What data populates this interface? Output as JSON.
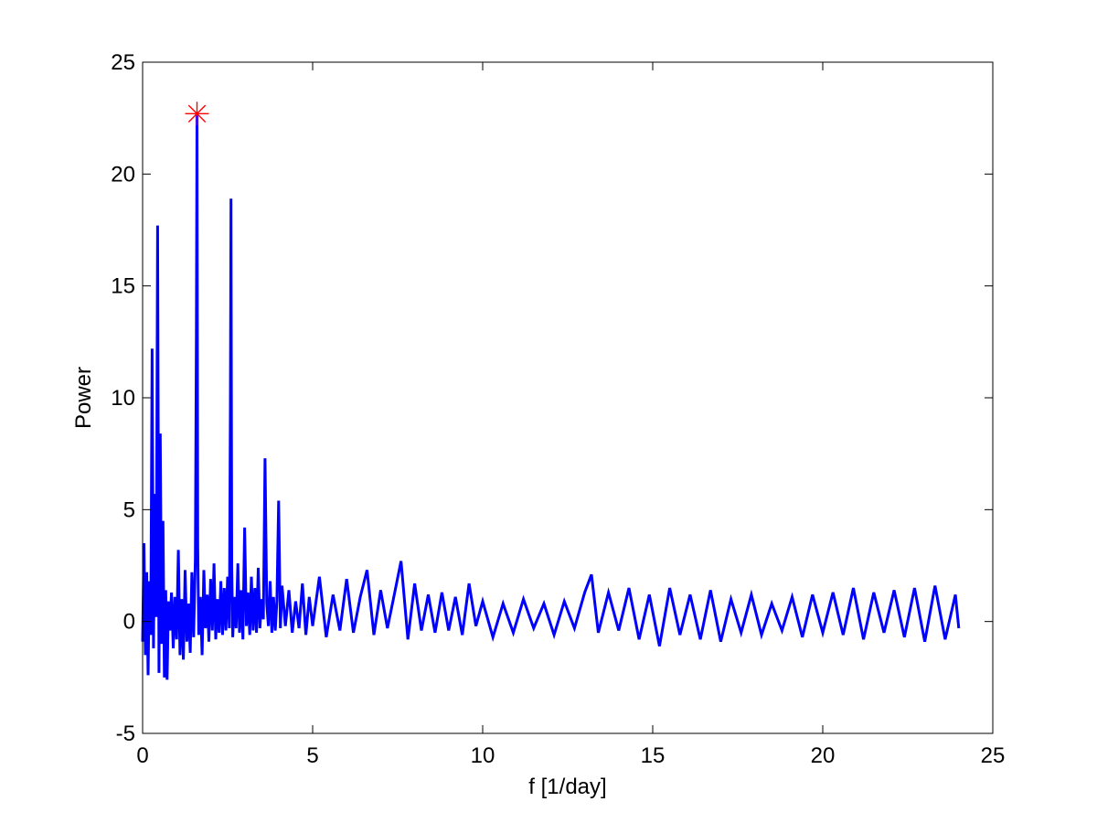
{
  "chart_data": {
    "type": "line",
    "title": "",
    "xlabel": "f [1/day]",
    "ylabel": "Power",
    "xlim": [
      0,
      25
    ],
    "ylim": [
      -5,
      25
    ],
    "xticks": [
      0,
      5,
      10,
      15,
      20,
      25
    ],
    "yticks": [
      -5,
      0,
      5,
      10,
      15,
      20,
      25
    ],
    "grid": false,
    "legend": "none",
    "series": [
      {
        "color": "#0000ff",
        "x": [
          0.0,
          0.04,
          0.08,
          0.12,
          0.16,
          0.2,
          0.24,
          0.28,
          0.32,
          0.36,
          0.4,
          0.44,
          0.48,
          0.52,
          0.56,
          0.6,
          0.64,
          0.68,
          0.72,
          0.76,
          0.8,
          0.85,
          0.9,
          0.95,
          1.0,
          1.05,
          1.1,
          1.15,
          1.2,
          1.25,
          1.3,
          1.35,
          1.4,
          1.45,
          1.5,
          1.55,
          1.58,
          1.6,
          1.62,
          1.65,
          1.7,
          1.75,
          1.8,
          1.85,
          1.9,
          1.95,
          2.0,
          2.05,
          2.1,
          2.15,
          2.2,
          2.25,
          2.3,
          2.35,
          2.4,
          2.45,
          2.5,
          2.55,
          2.58,
          2.6,
          2.62,
          2.65,
          2.7,
          2.75,
          2.8,
          2.85,
          2.9,
          2.95,
          3.0,
          3.05,
          3.1,
          3.15,
          3.2,
          3.25,
          3.3,
          3.35,
          3.4,
          3.45,
          3.5,
          3.55,
          3.6,
          3.65,
          3.7,
          3.75,
          3.8,
          3.85,
          3.9,
          3.95,
          4.0,
          4.05,
          4.1,
          4.2,
          4.3,
          4.4,
          4.5,
          4.6,
          4.7,
          4.8,
          4.9,
          5.0,
          5.2,
          5.4,
          5.6,
          5.8,
          6.0,
          6.2,
          6.4,
          6.6,
          6.8,
          7.0,
          7.2,
          7.4,
          7.6,
          7.8,
          8.0,
          8.2,
          8.4,
          8.6,
          8.8,
          9.0,
          9.2,
          9.4,
          9.6,
          9.8,
          10.0,
          10.3,
          10.6,
          10.9,
          11.2,
          11.5,
          11.8,
          12.1,
          12.4,
          12.7,
          13.0,
          13.2,
          13.4,
          13.7,
          14.0,
          14.3,
          14.6,
          14.9,
          15.2,
          15.5,
          15.8,
          16.1,
          16.4,
          16.7,
          17.0,
          17.3,
          17.6,
          17.9,
          18.2,
          18.5,
          18.8,
          19.1,
          19.4,
          19.7,
          20.0,
          20.3,
          20.6,
          20.9,
          21.2,
          21.5,
          21.8,
          22.1,
          22.4,
          22.7,
          23.0,
          23.3,
          23.6,
          23.9,
          24.0
        ],
        "y": [
          -0.9,
          3.5,
          -1.5,
          2.2,
          -2.4,
          1.8,
          -0.6,
          12.2,
          -1.2,
          5.7,
          0.2,
          17.7,
          -2.3,
          8.4,
          -1.0,
          4.5,
          -2.5,
          1.4,
          -2.6,
          0.9,
          -0.4,
          1.3,
          -1.2,
          1.1,
          -0.8,
          3.2,
          -1.5,
          1.0,
          -1.7,
          2.3,
          -0.9,
          0.8,
          -1.4,
          2.2,
          -0.7,
          2.8,
          12.8,
          22.7,
          3.4,
          -0.6,
          1.1,
          -1.5,
          2.3,
          -0.3,
          1.2,
          -0.9,
          1.9,
          -0.4,
          2.6,
          -0.8,
          1.0,
          -0.5,
          1.8,
          -0.6,
          1.5,
          -0.4,
          2.0,
          -0.3,
          9.5,
          18.9,
          2.5,
          -0.7,
          1.1,
          -0.3,
          2.6,
          -0.5,
          1.4,
          -0.8,
          4.2,
          -0.2,
          1.3,
          -0.6,
          2.0,
          -0.4,
          1.5,
          -0.5,
          2.4,
          -0.3,
          1.0,
          0.1,
          7.3,
          0.8,
          -0.2,
          1.8,
          -0.5,
          1.1,
          -0.4,
          0.9,
          5.4,
          -0.3,
          1.6,
          -0.2,
          1.4,
          -0.5,
          0.9,
          -0.3,
          1.7,
          -0.6,
          1.1,
          -0.2,
          2.0,
          -0.7,
          1.2,
          -0.4,
          1.9,
          -0.5,
          1.1,
          2.3,
          -0.6,
          1.4,
          -0.3,
          1.2,
          2.7,
          -0.8,
          1.7,
          -0.4,
          1.2,
          -0.5,
          1.3,
          -0.4,
          1.1,
          -0.6,
          1.7,
          -0.2,
          0.9,
          -0.7,
          0.8,
          -0.5,
          1.0,
          -0.3,
          0.8,
          -0.6,
          0.9,
          -0.3,
          1.3,
          2.1,
          -0.5,
          1.3,
          -0.4,
          1.5,
          -0.8,
          1.2,
          -1.1,
          1.5,
          -0.6,
          1.2,
          -0.8,
          1.4,
          -0.9,
          1.0,
          -0.5,
          1.2,
          -0.6,
          0.8,
          -0.4,
          1.1,
          -0.7,
          1.2,
          -0.5,
          1.3,
          -0.6,
          1.5,
          -0.8,
          1.3,
          -0.5,
          1.4,
          -0.7,
          1.5,
          -0.9,
          1.6,
          -0.8,
          1.2,
          -0.3
        ]
      }
    ],
    "annotations": [
      {
        "type": "marker",
        "shape": "asterisk",
        "color": "#ff0000",
        "x": 1.6,
        "y": 22.7
      }
    ]
  }
}
